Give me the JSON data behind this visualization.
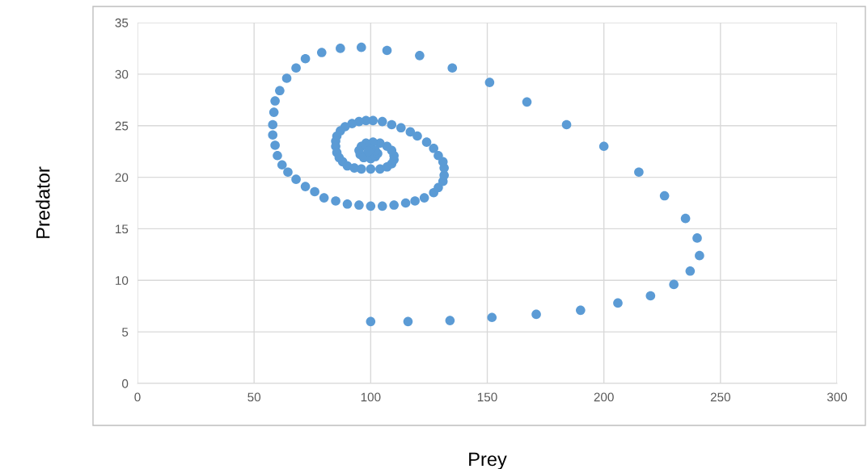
{
  "chart_data": {
    "type": "scatter",
    "xlabel": "Prey",
    "ylabel": "Predator",
    "xlim": [
      0,
      300
    ],
    "xticks": [
      0,
      50,
      100,
      150,
      200,
      250,
      300
    ],
    "ylim": [
      0,
      35
    ],
    "yticks": [
      0,
      5,
      10,
      15,
      20,
      25,
      30,
      35
    ],
    "grid": true,
    "marker": "circle",
    "series": [
      {
        "color": "#5b9bd5",
        "x": [
          100,
          116,
          134,
          152,
          171,
          190,
          206,
          220,
          230,
          237,
          241,
          240,
          235,
          226,
          215,
          200,
          184,
          167,
          151,
          135,
          121,
          107,
          96,
          87,
          79,
          72,
          68,
          64,
          61,
          59,
          58.5,
          58,
          58,
          59,
          60,
          62,
          64.5,
          68,
          72,
          76,
          80,
          85,
          90,
          95,
          100,
          105,
          110,
          115,
          119,
          123,
          127,
          129,
          131,
          131.5,
          131.5,
          131,
          129,
          127,
          124,
          120,
          117,
          113,
          109,
          105,
          101,
          98,
          95,
          92,
          89,
          87,
          85.5,
          85,
          85,
          85.5,
          86.5,
          88,
          90,
          93,
          96,
          100,
          104,
          107,
          109,
          110,
          110,
          109,
          107,
          104,
          101,
          98,
          96,
          95,
          95.5,
          97,
          100,
          102,
          103,
          102,
          100,
          99
        ],
        "values": [
          6,
          6,
          6.1,
          6.4,
          6.7,
          7.1,
          7.8,
          8.5,
          9.6,
          10.9,
          12.4,
          14.1,
          16.0,
          18.2,
          20.5,
          23.0,
          25.1,
          27.3,
          29.2,
          30.6,
          31.8,
          32.3,
          32.6,
          32.5,
          32.1,
          31.5,
          30.6,
          29.6,
          28.4,
          27.4,
          26.3,
          25.1,
          24.1,
          23.1,
          22.1,
          21.2,
          20.5,
          19.8,
          19.1,
          18.6,
          18.0,
          17.7,
          17.4,
          17.3,
          17.2,
          17.2,
          17.3,
          17.5,
          17.7,
          18.0,
          18.5,
          19.0,
          19.6,
          20.2,
          20.9,
          21.5,
          22.1,
          22.8,
          23.4,
          24.0,
          24.4,
          24.8,
          25.1,
          25.4,
          25.5,
          25.5,
          25.4,
          25.2,
          24.9,
          24.5,
          24.0,
          23.5,
          23.0,
          22.4,
          21.9,
          21.5,
          21.1,
          20.9,
          20.8,
          20.8,
          20.8,
          21.0,
          21.3,
          21.7,
          22.1,
          22.6,
          23.0,
          23.3,
          23.4,
          23.3,
          23.0,
          22.6,
          22.2,
          21.9,
          21.8,
          22.0,
          22.3,
          22.6,
          22.7,
          22.5
        ]
      }
    ]
  }
}
